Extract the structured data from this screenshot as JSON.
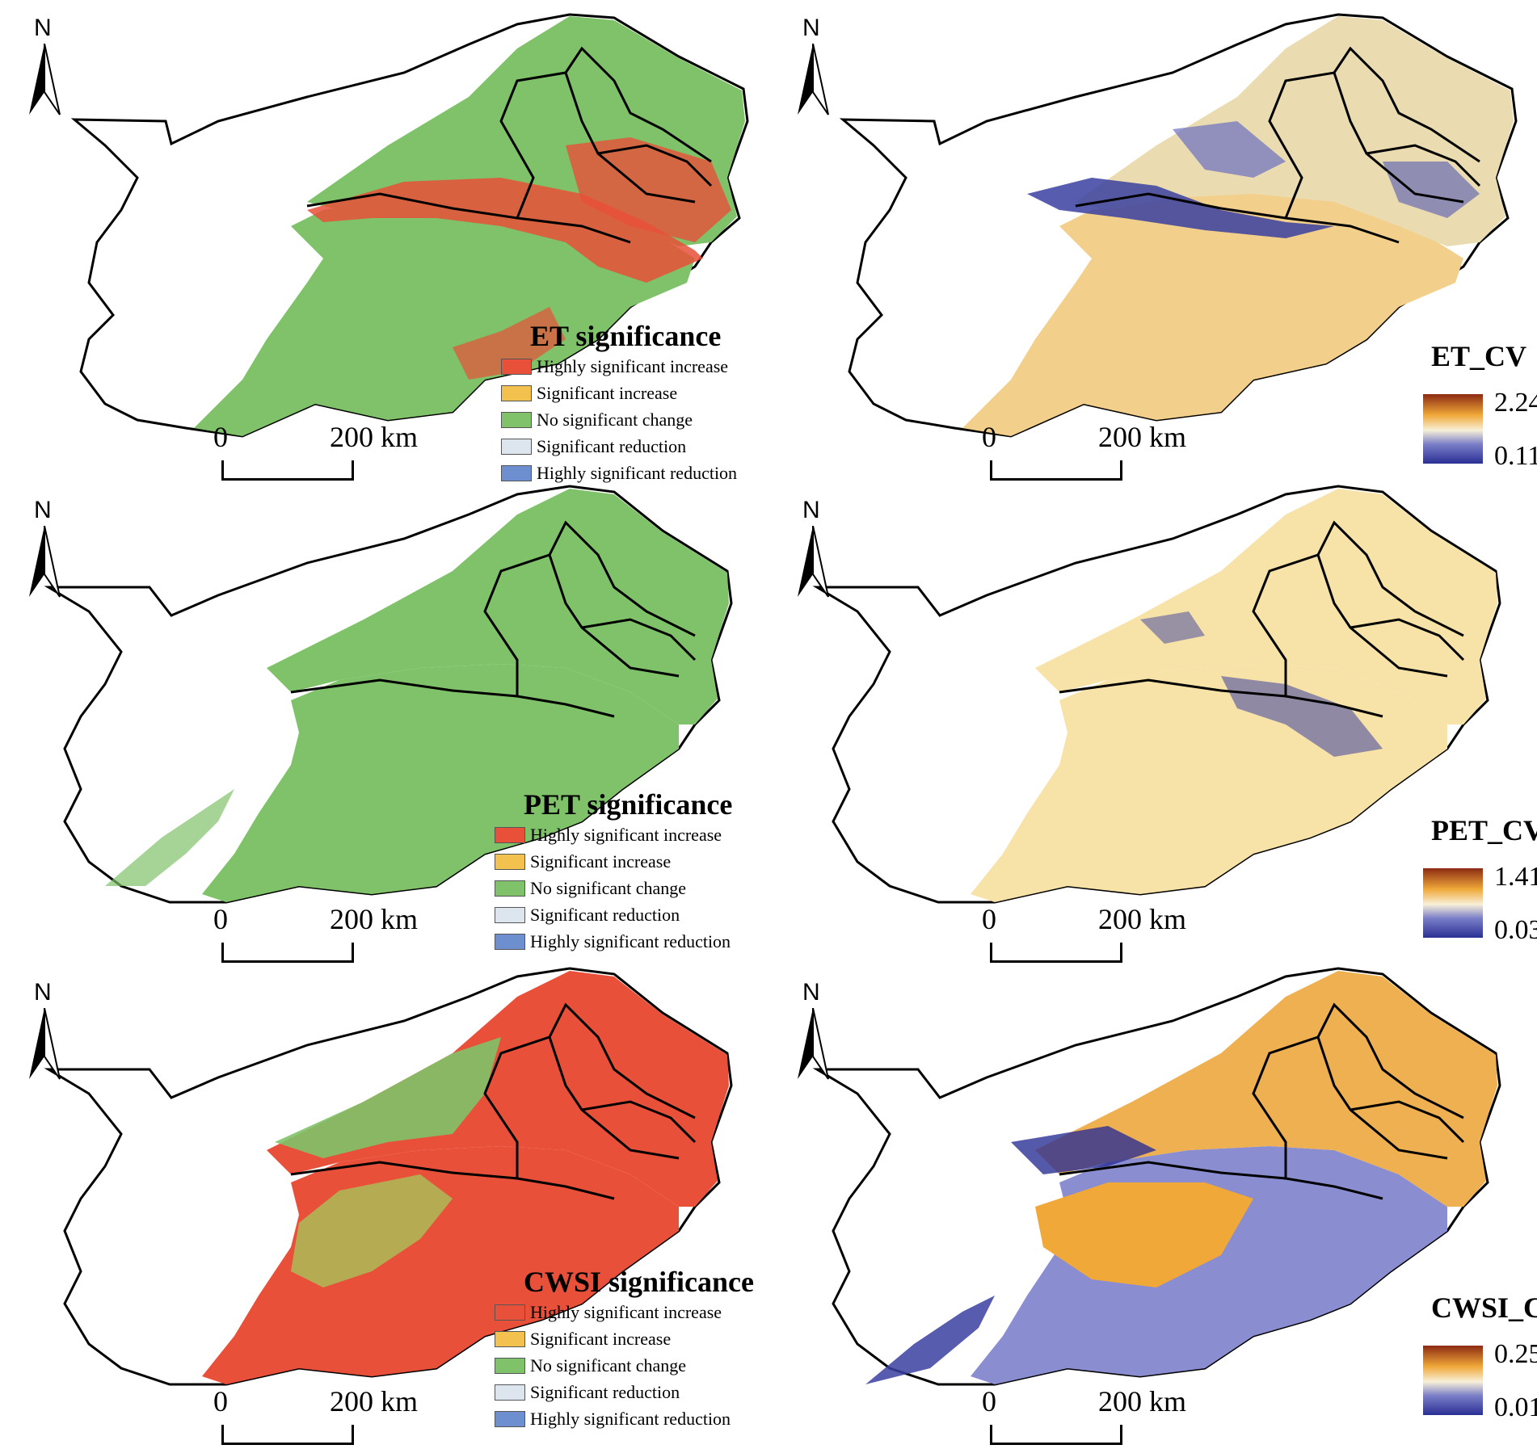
{
  "north_label": "N",
  "scale": {
    "start": "0",
    "end": "200 km"
  },
  "legend_classes": [
    {
      "label": "Highly significant increase",
      "color": "#e8503a"
    },
    {
      "label": "Significant increase",
      "color": "#f2c14e"
    },
    {
      "label": "No significant change",
      "color": "#7fc269"
    },
    {
      "label": "Significant reduction",
      "color": "#dde6ef"
    },
    {
      "label": "Highly significant reduction",
      "color": "#6e8fcf"
    }
  ],
  "panels": [
    {
      "type": "significance",
      "title": "ET significance",
      "dominant": "mixed"
    },
    {
      "type": "cv",
      "title": "ET_CV",
      "max": "2.24",
      "min": "0.11"
    },
    {
      "type": "significance",
      "title": "PET significance",
      "dominant": "green"
    },
    {
      "type": "cv",
      "title": "PET_CV",
      "max": "1.41",
      "min": "0.03"
    },
    {
      "type": "significance",
      "title": "CWSI significance",
      "dominant": "red"
    },
    {
      "type": "cv",
      "title": "CWSI_CV",
      "max": "0.25",
      "min": "0.01"
    }
  ],
  "cv_ramp": {
    "high": "#8c2a12",
    "mid_high": "#f0a838",
    "mid": "#f7f0d8",
    "mid_low": "#7b7fc8",
    "low": "#2a2f94"
  }
}
